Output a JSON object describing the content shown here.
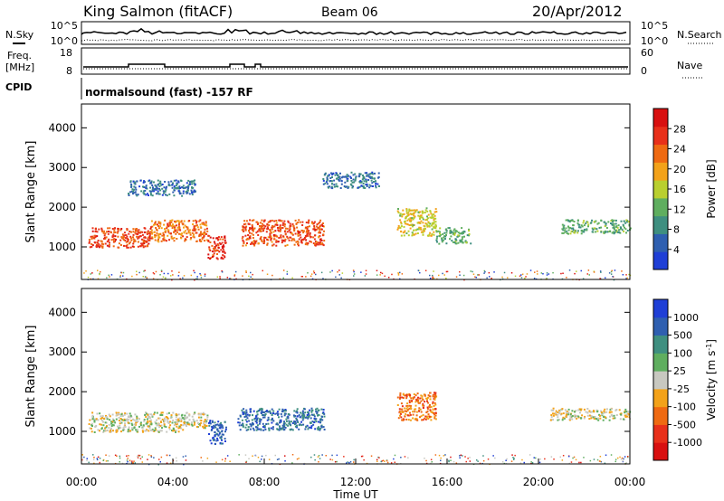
{
  "header": {
    "station": "King Salmon (fitACF)",
    "beam": "Beam 06",
    "date": "20/Apr/2012"
  },
  "labels": {
    "nsky": "N.Sky",
    "nsearch": "N.Search",
    "freq_line1": "Freq.",
    "freq_line2": "[MHz]",
    "nave": "Nave",
    "cpid": "CPID",
    "cpid_value": "normalsound (fast) -157 RF"
  },
  "noise_panel": {
    "left_ticks": [
      "10^5",
      "10^0"
    ],
    "right_ticks": [
      "10^5",
      "10^0"
    ]
  },
  "freq_panel": {
    "left_ticks": [
      "18",
      "8"
    ],
    "right_ticks": [
      "60",
      "0"
    ]
  },
  "colors": {
    "power_scale": [
      "#1f3fd6",
      "#2f5fb0",
      "#3f8f80",
      "#5fae5f",
      "#b9cf2f",
      "#f3a21a",
      "#ef6a12",
      "#e8301a",
      "#d81010"
    ],
    "velocity_scale": [
      "#1f3fd6",
      "#2f5fb0",
      "#3f8f80",
      "#5fae5f",
      "#c8c8c0",
      "#f3a21a",
      "#ef6a12",
      "#e8301a",
      "#d81010"
    ]
  },
  "chart_data": [
    {
      "type": "heatmap",
      "panel": "power",
      "ylabel": "Slant Range [km]",
      "xlabel": "Time UT",
      "x_ticks": [
        "00:00",
        "04:00",
        "08:00",
        "12:00",
        "16:00",
        "20:00",
        "00:00"
      ],
      "xlim_hours": [
        0,
        24
      ],
      "ylim": [
        180,
        4600
      ],
      "y_ticks": [
        1000,
        2000,
        3000,
        4000
      ],
      "colorbar": {
        "label": "Power [dB]",
        "range": [
          0,
          32
        ],
        "ticks": [
          "4",
          "8",
          "12",
          "16",
          "20",
          "24",
          "28"
        ]
      },
      "bands": [
        {
          "t0": 0.3,
          "t1": 3.0,
          "r0": 1000,
          "r1": 1500,
          "level": 0.8
        },
        {
          "t0": 3.0,
          "t1": 5.5,
          "r0": 1150,
          "r1": 1700,
          "level": 0.7
        },
        {
          "t0": 5.5,
          "t1": 6.3,
          "r0": 700,
          "r1": 1300,
          "level": 0.85
        },
        {
          "t0": 7.0,
          "t1": 10.6,
          "r0": 1050,
          "r1": 1700,
          "level": 0.78
        },
        {
          "t0": 13.8,
          "t1": 15.5,
          "r0": 1300,
          "r1": 2000,
          "level": 0.55
        },
        {
          "t0": 15.5,
          "t1": 17.0,
          "r0": 1100,
          "r1": 1500,
          "level": 0.35
        },
        {
          "t0": 21.0,
          "t1": 24.0,
          "r0": 1350,
          "r1": 1700,
          "level": 0.35
        },
        {
          "t0": 2.0,
          "t1": 5.0,
          "r0": 2300,
          "r1": 2700,
          "level": 0.2
        },
        {
          "t0": 10.5,
          "t1": 13.0,
          "r0": 2500,
          "r1": 2900,
          "level": 0.2
        }
      ]
    },
    {
      "type": "heatmap",
      "panel": "velocity",
      "ylabel": "Slant Range [km]",
      "xlabel": "Time UT",
      "x_ticks": [
        "00:00",
        "04:00",
        "08:00",
        "12:00",
        "16:00",
        "20:00",
        "00:00"
      ],
      "xlim_hours": [
        0,
        24
      ],
      "ylim": [
        180,
        4600
      ],
      "y_ticks": [
        1000,
        2000,
        3000,
        4000
      ],
      "colorbar": {
        "label": "Velocity [m s^-1]",
        "range": [
          -1200,
          1200
        ],
        "ticks": [
          "1000",
          "500",
          "100",
          "25",
          "-25",
          "-100",
          "-500",
          "-1000"
        ]
      },
      "bands": [
        {
          "t0": 0.3,
          "t1": 4.5,
          "r0": 1000,
          "r1": 1500,
          "level": 0.5
        },
        {
          "t0": 4.5,
          "t1": 5.5,
          "r0": 1100,
          "r1": 1500,
          "level": 0.5
        },
        {
          "t0": 5.5,
          "t1": 6.3,
          "r0": 700,
          "r1": 1300,
          "level": 0.15
        },
        {
          "t0": 6.8,
          "t1": 10.6,
          "r0": 1050,
          "r1": 1600,
          "level": 0.2
        },
        {
          "t0": 13.8,
          "t1": 15.5,
          "r0": 1300,
          "r1": 2000,
          "level": 0.7
        },
        {
          "t0": 20.5,
          "t1": 24.0,
          "r0": 1300,
          "r1": 1600,
          "level": 0.5
        }
      ]
    }
  ]
}
